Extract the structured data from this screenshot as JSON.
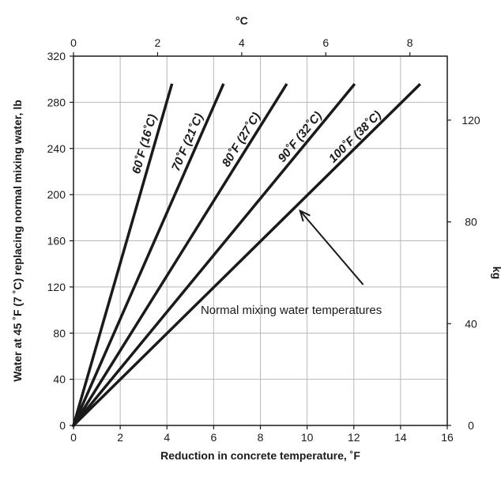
{
  "chart_data": {
    "type": "line",
    "title": "",
    "xlabel": "Reduction in concrete temperature, ˚F",
    "ylabel": "Water at 45 ˚F (7 ˚C) replacing normal mixing water, lb",
    "x2label": "°C",
    "y2label": "kg",
    "xlim": [
      0,
      16
    ],
    "ylim": [
      0,
      320
    ],
    "x_ticks": [
      0,
      2,
      4,
      6,
      8,
      10,
      12,
      14,
      16
    ],
    "y_ticks": [
      0,
      40,
      80,
      120,
      160,
      200,
      240,
      280,
      320
    ],
    "x2_ticks": [
      0,
      2,
      4,
      6,
      8
    ],
    "y2_ticks": [
      0,
      40,
      80,
      120
    ],
    "grid": true,
    "series": [
      {
        "name": "60˚F (16˚C)",
        "x": [
          0,
          4.2
        ],
        "y": [
          0,
          295
        ]
      },
      {
        "name": "70˚F (21˚C)",
        "x": [
          0,
          6.4
        ],
        "y": [
          0,
          295
        ]
      },
      {
        "name": "80˚F (27˚C)",
        "x": [
          0,
          9.1
        ],
        "y": [
          0,
          295
        ]
      },
      {
        "name": "90˚F (32˚C)",
        "x": [
          0,
          12.0
        ],
        "y": [
          0,
          295
        ]
      },
      {
        "name": "100˚F (38˚C)",
        "x": [
          0,
          14.8
        ],
        "y": [
          0,
          295
        ]
      }
    ],
    "annotation": {
      "text": "Normal mixing water temperatures",
      "arrow_tip": {
        "x": 9.7,
        "y": 186
      },
      "arrow_tail": {
        "x": 12.4,
        "y": 122
      }
    }
  }
}
